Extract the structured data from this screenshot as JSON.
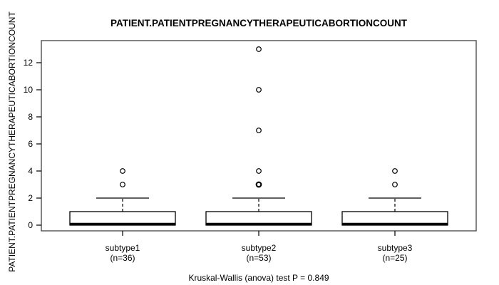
{
  "title": "PATIENT.PATIENTPREGNANCYTHERAPEUTICABORTIONCOUNT",
  "chart_data": {
    "type": "boxplot",
    "title": "PATIENT.PATIENTPREGNANCYTHERAPEUTICABORTIONCOUNT",
    "ylabel": "PATIENT.PATIENTPREGNANCYTHERAPEUTICABORTIONCOUNT",
    "xlabel": "",
    "ylim": [
      0,
      13
    ],
    "yticks": [
      0,
      2,
      4,
      6,
      8,
      10,
      12
    ],
    "grid": false,
    "annotation": "Kruskal-Wallis (anova) test P = 0.849",
    "groups": [
      {
        "label": "subtype1",
        "sublabel": "(n=36)",
        "n": 36,
        "q1": 0,
        "median": 0,
        "q3": 1,
        "whisker_low": 0,
        "whisker_high": 2,
        "outliers": [
          3,
          4
        ],
        "emphasized_outliers": []
      },
      {
        "label": "subtype2",
        "sublabel": "(n=53)",
        "n": 53,
        "q1": 0,
        "median": 0,
        "q3": 1,
        "whisker_low": 0,
        "whisker_high": 2,
        "outliers": [
          3,
          4,
          7,
          10,
          13
        ],
        "emphasized_outliers": [
          3
        ]
      },
      {
        "label": "subtype3",
        "sublabel": "(n=25)",
        "n": 25,
        "q1": 0,
        "median": 0,
        "q3": 1,
        "whisker_low": 0,
        "whisker_high": 2,
        "outliers": [
          3,
          4
        ],
        "emphasized_outliers": []
      }
    ],
    "colors": {
      "line": "#000000",
      "frame": "#5a5a5a",
      "box_fill": "#ffffff",
      "background": "#ffffff",
      "text": "#000000"
    }
  }
}
